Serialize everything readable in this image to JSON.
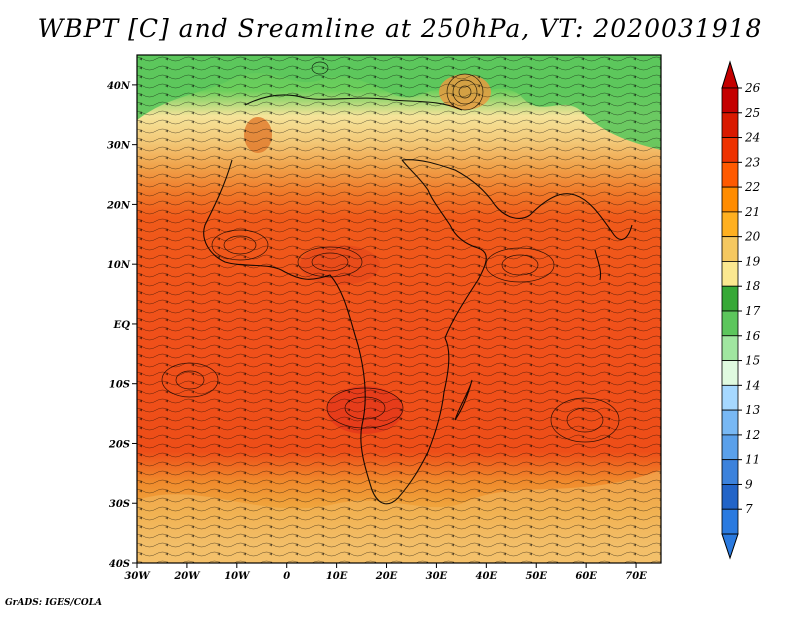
{
  "title": "WBPT [C] and Sreamline at 250hPa, VT: 2020031918",
  "credit": "GrADS: IGES/COLA",
  "map": {
    "lat_ticks": [
      "40N",
      "30N",
      "20N",
      "10N",
      "EQ",
      "10S",
      "20S",
      "30S",
      "40S"
    ],
    "lon_ticks": [
      "30W",
      "20W",
      "10W",
      "0",
      "10E",
      "20E",
      "30E",
      "40E",
      "50E",
      "60E",
      "70E"
    ],
    "lat_range": [
      -40,
      45
    ],
    "lon_range": [
      -30,
      75
    ]
  },
  "colorbar": {
    "labels": [
      "26",
      "25",
      "24",
      "23",
      "22",
      "21",
      "20",
      "19",
      "18",
      "17",
      "16",
      "15",
      "14",
      "13",
      "12",
      "11",
      "9",
      "7"
    ],
    "colors": [
      "#c40000",
      "#d91a00",
      "#ee3200",
      "#ff5a00",
      "#ff8c00",
      "#ffb020",
      "#f5c860",
      "#fbe890",
      "#36a836",
      "#5cc65c",
      "#a0e6a0",
      "#e0fae0",
      "#a6d8ff",
      "#78b8f4",
      "#5aa0ea",
      "#3c82dc",
      "#2264c8",
      "#2a7ae0"
    ]
  }
}
